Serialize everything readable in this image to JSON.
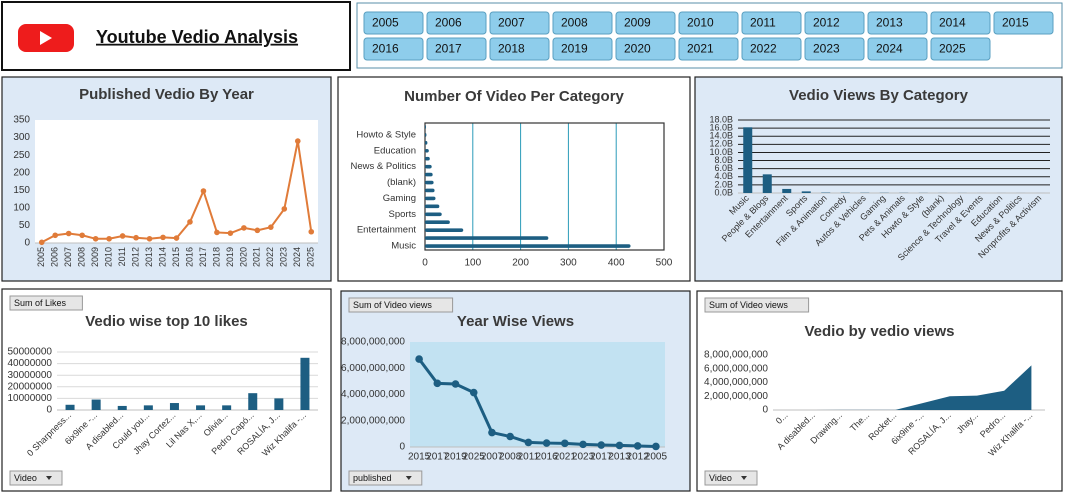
{
  "header": {
    "title": "Youtube Vedio Analysis"
  },
  "slicer": {
    "years": [
      "2005",
      "2006",
      "2007",
      "2008",
      "2009",
      "2010",
      "2011",
      "2012",
      "2013",
      "2014",
      "2015",
      "2016",
      "2017",
      "2018",
      "2019",
      "2020",
      "2021",
      "2022",
      "2023",
      "2024",
      "2025"
    ]
  },
  "chart_data": [
    {
      "type": "line",
      "title": "Published Vedio By Year",
      "color": "#e07b39",
      "categories": [
        "2005",
        "2006",
        "2007",
        "2008",
        "2009",
        "2010",
        "2011",
        "2012",
        "2013",
        "2014",
        "2015",
        "2016",
        "2017",
        "2018",
        "2019",
        "2020",
        "2021",
        "2022",
        "2023",
        "2024",
        "2025"
      ],
      "values": [
        2,
        22,
        27,
        22,
        12,
        12,
        20,
        15,
        12,
        16,
        14,
        60,
        148,
        30,
        28,
        43,
        36,
        45,
        97,
        290,
        32
      ],
      "ylim": [
        0,
        350
      ],
      "yticks": [
        0,
        50,
        100,
        150,
        200,
        250,
        300,
        350
      ],
      "grid": false
    },
    {
      "type": "barh",
      "title": "Number Of Video Per Category",
      "color": "#1d5e82",
      "categories": [
        "Music",
        null,
        "Entertainment",
        null,
        "Sports",
        null,
        "Gaming",
        null,
        "(blank)",
        null,
        "News & Politics",
        null,
        "Education",
        null,
        "Howto & Style",
        null
      ],
      "values": [
        430,
        258,
        80,
        52,
        35,
        30,
        22,
        20,
        18,
        16,
        14,
        10,
        8,
        5,
        3,
        2
      ],
      "xlim": [
        0,
        500
      ],
      "xticks": [
        0,
        100,
        200,
        300,
        400,
        500
      ],
      "grid": true
    },
    {
      "type": "bar",
      "title": "Vedio Views By Category",
      "color": "#1d5e82",
      "categories": [
        "Music",
        "People & Blogs",
        "Entertainment",
        "Sports",
        "Film & Animation",
        "Comedy",
        "Autos & Vehicles",
        "Gaming",
        "Pets & Animals",
        "Howto & Style",
        "(blank)",
        "Science & Technology",
        "Travel & Events",
        "Education",
        "News & Politics",
        "Nonprofits & Activism"
      ],
      "values": [
        16200000000,
        4600000000,
        1000000000,
        400000000,
        100000000,
        80000000,
        60000000,
        50000000,
        40000000,
        30000000,
        20000000,
        20000000,
        10000000,
        10000000,
        10000000,
        5000000
      ],
      "ylim": [
        0,
        18000000000
      ],
      "yticks": [
        {
          "value": 0,
          "label": "0.0B"
        },
        {
          "value": 2000000000,
          "label": "2.0B"
        },
        {
          "value": 4000000000,
          "label": "4.0B"
        },
        {
          "value": 6000000000,
          "label": "6.0B"
        },
        {
          "value": 8000000000,
          "label": "8.0B"
        },
        {
          "value": 10000000000,
          "label": "10.0B"
        },
        {
          "value": 12000000000,
          "label": "12.0B"
        },
        {
          "value": 14000000000,
          "label": "14.0B"
        },
        {
          "value": 16000000000,
          "label": "16.0B"
        },
        {
          "value": 18000000000,
          "label": "18.0B"
        }
      ],
      "grid": true
    },
    {
      "type": "bar",
      "title": "Vedio wise top 10 likes",
      "color": "#1d5e82",
      "value_field": "Sum of Likes",
      "filter_field": "Video",
      "categories": [
        "0 Sharpness...",
        "6ix9ine -...",
        "A disabled...",
        "Could you...",
        "Jhay Cortez...",
        "Lil Nas X,...",
        "Olivia...",
        "Pedro Capó...",
        "ROSALÍA, J...",
        "Wiz Khalifa -..."
      ],
      "values": [
        4500000,
        9000000,
        3500000,
        4000000,
        6000000,
        4000000,
        4000000,
        14500000,
        10000000,
        45000000
      ],
      "ylim": [
        0,
        50000000
      ],
      "yticks": [
        0,
        10000000,
        20000000,
        30000000,
        40000000,
        50000000
      ],
      "grid": true
    },
    {
      "type": "line",
      "title": "Year Wise Views",
      "color": "#1d5e82",
      "value_field": "Sum of Video views",
      "filter_field": "published",
      "categories": [
        "2015",
        "2017",
        "2019",
        "2025",
        "2007",
        "2008",
        "2011",
        "2016",
        "2021",
        "2023",
        "2017",
        "2013",
        "2012",
        "2005"
      ],
      "values": [
        6700000000,
        4850000000,
        4800000000,
        4150000000,
        1100000000,
        800000000,
        350000000,
        300000000,
        280000000,
        200000000,
        150000000,
        120000000,
        80000000,
        40000000
      ],
      "ylim": [
        0,
        8000000000
      ],
      "yticks": [
        0,
        {
          "value": 2000000000,
          "label": "2,000,000,000"
        },
        {
          "value": 4000000000,
          "label": "4,000,000,000"
        },
        {
          "value": 6000000000,
          "label": "6,000,000,000"
        },
        {
          "value": 8000000000,
          "label": "8,000,000,000"
        }
      ],
      "grid": false
    },
    {
      "type": "area",
      "title": "Vedio by vedio views",
      "color": "#1d5e82",
      "value_field": "Sum of Video views",
      "filter_field": "Video",
      "categories": [
        "0...",
        "A disabled...",
        "Drawing...",
        "The...",
        "Rocket...",
        "6ix9ine -...",
        "ROSALÍA, J...",
        "Jhay...",
        "Pedro...",
        "Wiz Khalifa -..."
      ],
      "values": [
        5000000,
        8000000,
        10000000,
        12000000,
        20000000,
        1000000000,
        2000000000,
        2100000000,
        2800000000,
        6500000000
      ],
      "ylim": [
        0,
        8000000000
      ],
      "yticks": [
        0,
        {
          "value": 2000000000,
          "label": "2,000,000,000"
        },
        {
          "value": 4000000000,
          "label": "4,000,000,000"
        },
        {
          "value": 6000000000,
          "label": "6,000,000,000"
        },
        {
          "value": 8000000000,
          "label": "8,000,000,000"
        }
      ],
      "grid": false
    }
  ]
}
